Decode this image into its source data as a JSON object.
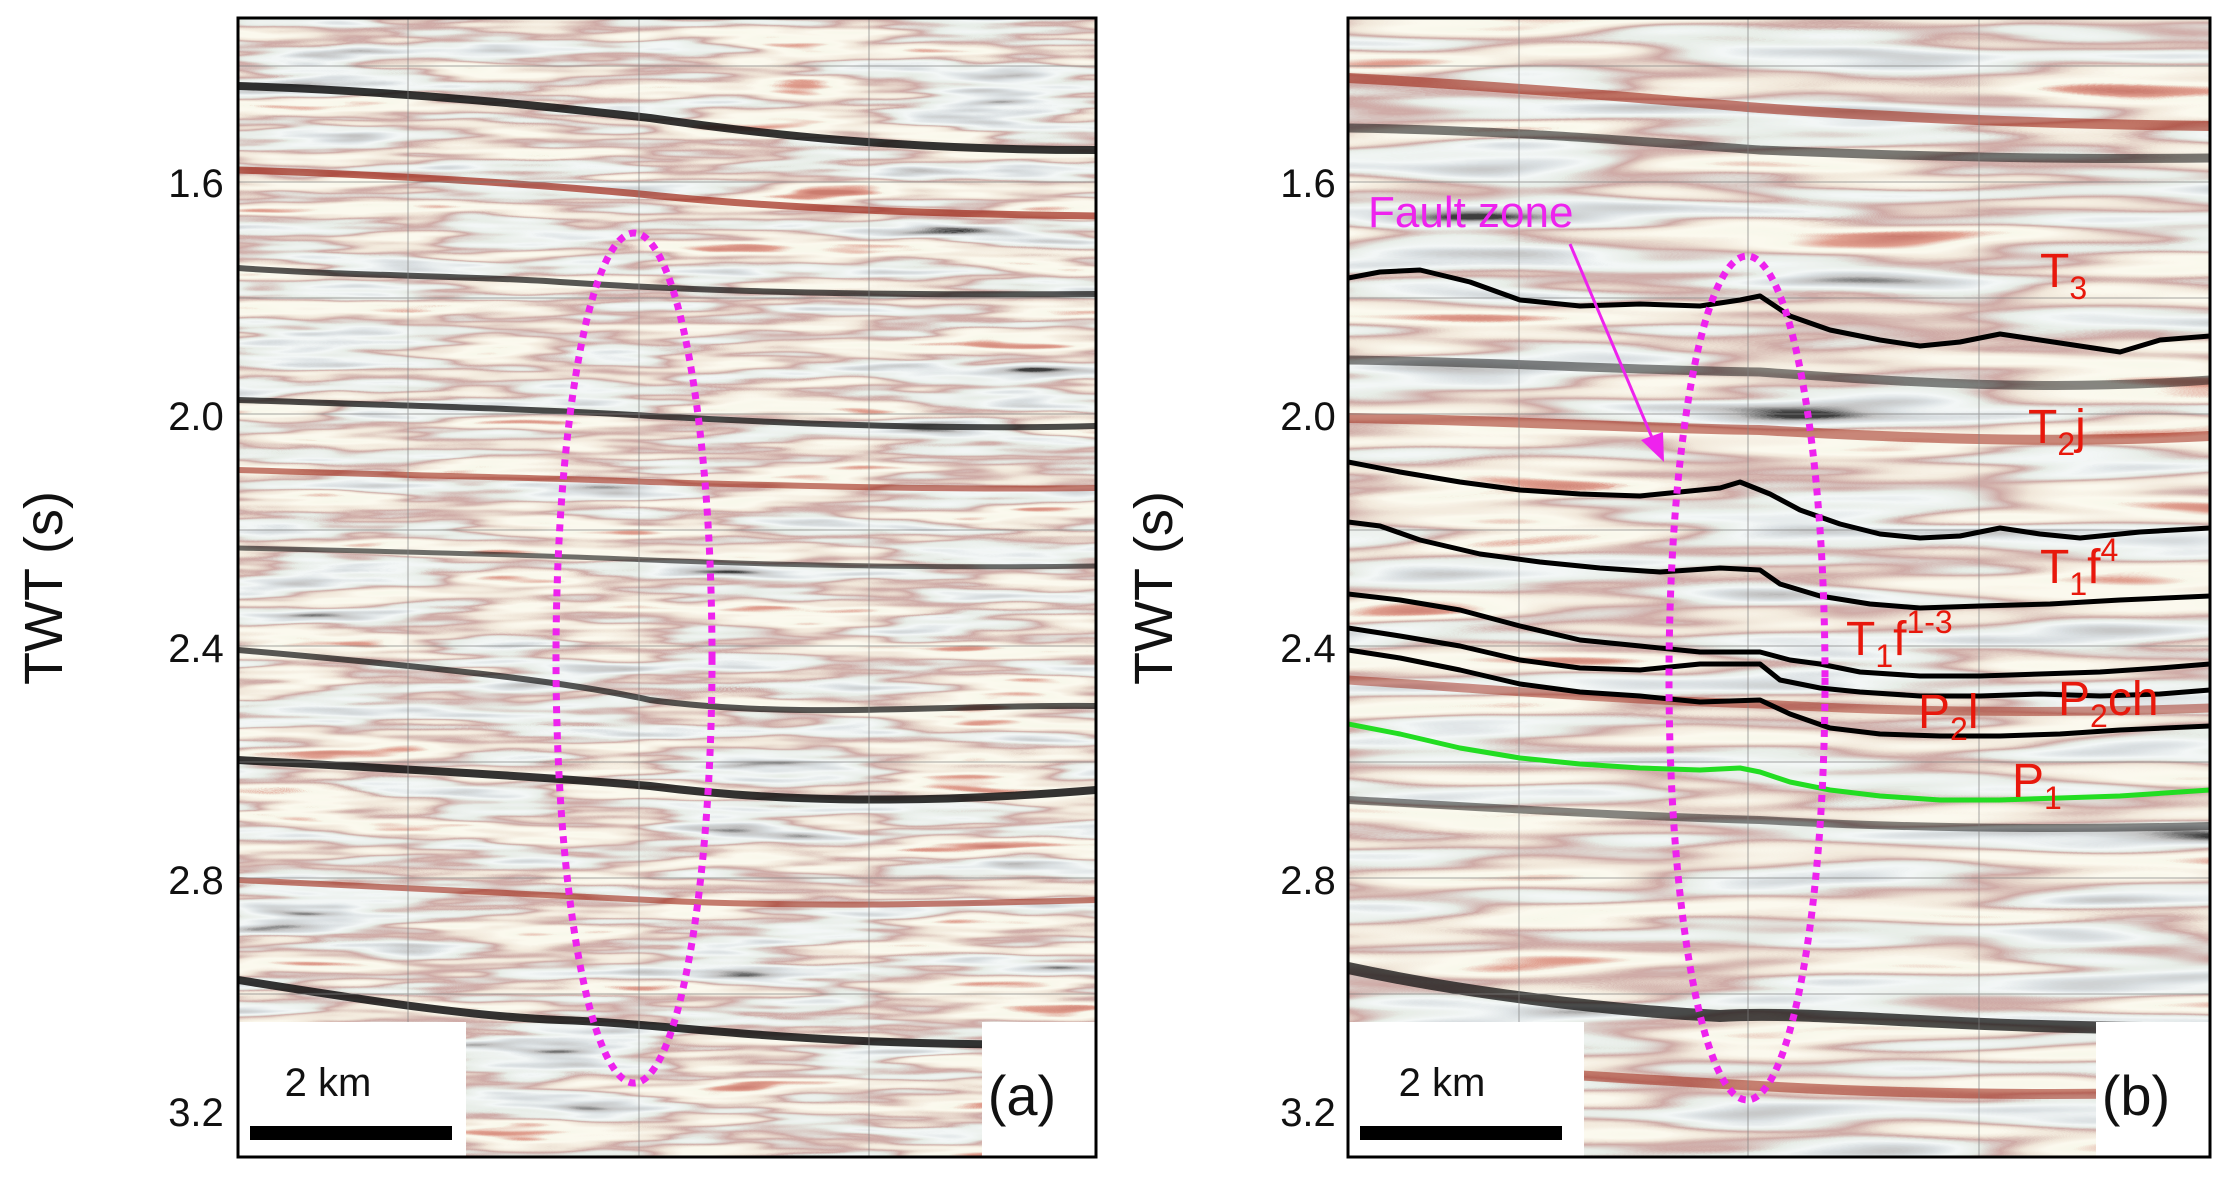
{
  "figure": {
    "y_axis": {
      "label": "TWT (s)",
      "ticks": [
        "1.6",
        "2.0",
        "2.4",
        "2.8",
        "3.2"
      ]
    },
    "panels": [
      {
        "id": "a",
        "label": "(a)",
        "scale_bar": "2 km"
      },
      {
        "id": "b",
        "label": "(b)",
        "scale_bar": "2 km",
        "fault_zone": "Fault zone",
        "horizons": [
          {
            "base": "T",
            "sub": "3",
            "sup": ""
          },
          {
            "base": "T",
            "sub": "2",
            "tail": "j"
          },
          {
            "base": "T",
            "sub": "1",
            "tail": "f",
            "sup": "4"
          },
          {
            "base": "T",
            "sub": "1",
            "tail": "f",
            "sup": "1-3"
          },
          {
            "base": "P",
            "sub": "2",
            "tail": "ch"
          },
          {
            "base": "P",
            "sub": "2",
            "tail": "l"
          },
          {
            "base": "P",
            "sub": "1",
            "tail": ""
          }
        ]
      }
    ]
  },
  "colors": {
    "fault": "#ee22ee",
    "horizon": "#000000",
    "p1_horizon": "#22dd22",
    "label": "#e8180c"
  }
}
